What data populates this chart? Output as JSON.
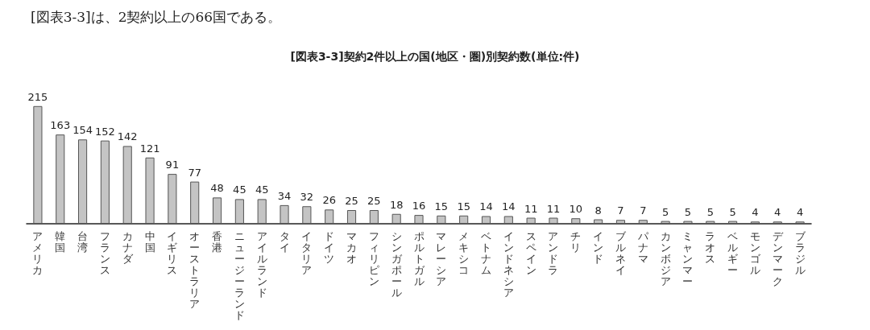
{
  "chart_data": {
    "type": "bar",
    "title": "[図表3-3]契約2件以上の国(地区・圏)別契約数(単位:件)",
    "annotations": [
      "[図表3-3]は、2契約以上の66国である。"
    ],
    "categories": [
      "アメリカ",
      "韓国",
      "台湾",
      "フランス",
      "カナダ",
      "中国",
      "イギリス",
      "オーストラリア",
      "香港",
      "ニュージーランド",
      "アイルランド",
      "タイ",
      "イタリア",
      "ドイツ",
      "マカオ",
      "フィリピン",
      "シンガポール",
      "ポルトガル",
      "マレーシア",
      "メキシコ",
      "ベトナム",
      "インドネシア",
      "スペイン",
      "アンドラ",
      "チリ",
      "インド",
      "ブルネイ",
      "パナマ",
      "カンボジア",
      "ミャンマー",
      "ラオス",
      "ベルギー",
      "モンゴル",
      "デンマーク",
      "ブラジル"
    ],
    "values": [
      215,
      163,
      154,
      152,
      142,
      121,
      91,
      77,
      48,
      45,
      45,
      34,
      32,
      26,
      25,
      25,
      18,
      16,
      15,
      15,
      14,
      14,
      11,
      11,
      10,
      8,
      7,
      7,
      5,
      5,
      5,
      5,
      4,
      4,
      4
    ],
    "color": "#c4c4c4",
    "data_labels": true
  }
}
